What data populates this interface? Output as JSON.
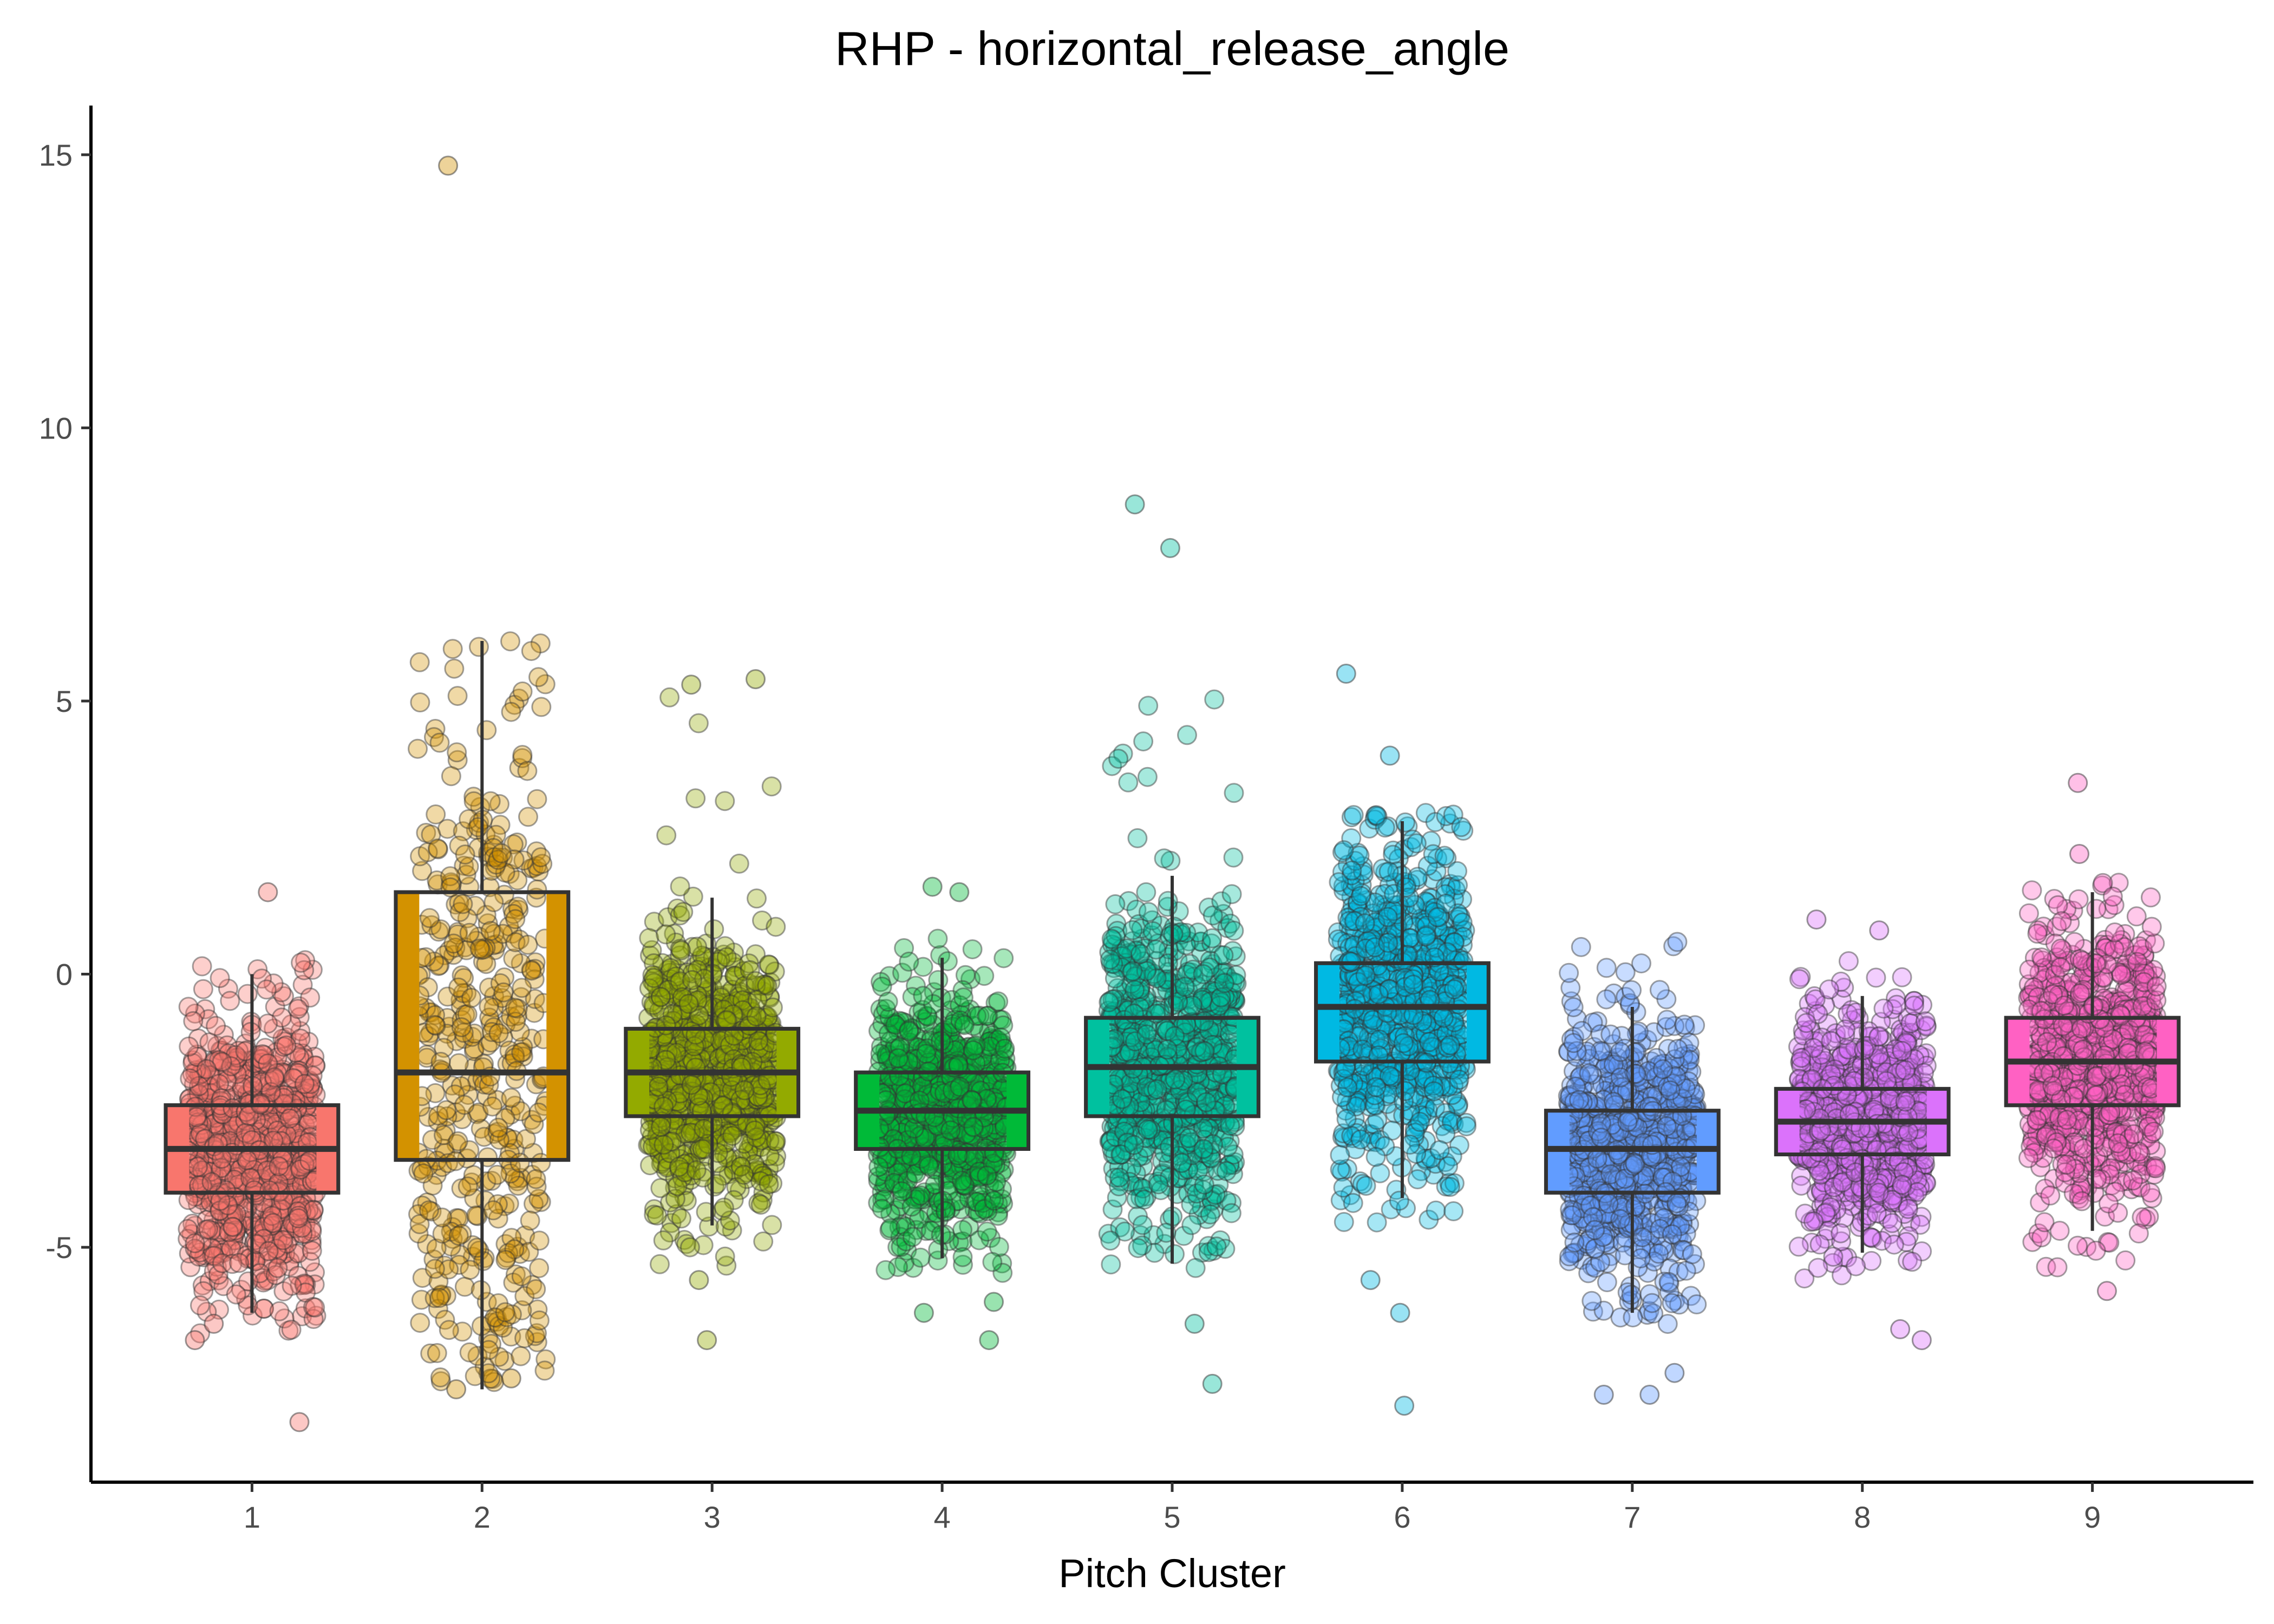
{
  "chart_data": {
    "type": "box",
    "title": "RHP - horizontal_release_angle",
    "xlabel": "Pitch Cluster",
    "ylabel": "",
    "ylim": [
      -9.3,
      15.9
    ],
    "y_ticks": [
      -5,
      0,
      5,
      10,
      15
    ],
    "y_tick_labels": [
      "-5",
      "0",
      "5",
      "10",
      "15"
    ],
    "categories": [
      "1",
      "2",
      "3",
      "4",
      "5",
      "6",
      "7",
      "8",
      "9"
    ],
    "grid": false,
    "legend": "none",
    "boxes": [
      {
        "category": "1",
        "color": "#F8766D",
        "q1": -4.0,
        "median": -3.2,
        "q3": -2.4,
        "whisker_low": -6.2,
        "whisker_high": 0.0,
        "jitter_low": -6.6,
        "jitter_high": 0.3,
        "n_points": 1400,
        "outliers": [
          1.5,
          -8.2,
          -6.7,
          -6.4
        ]
      },
      {
        "category": "2",
        "color": "#D39200",
        "q1": -3.4,
        "median": -1.8,
        "q3": 1.5,
        "whisker_low": -7.6,
        "whisker_high": 6.1,
        "jitter_low": -7.5,
        "jitter_high": 6.1,
        "n_points": 420,
        "outliers": [
          14.8,
          -7.6,
          -7.4
        ]
      },
      {
        "category": "3",
        "color": "#93AA00",
        "q1": -2.6,
        "median": -1.8,
        "q3": -1.0,
        "whisker_low": -4.6,
        "whisker_high": 1.4,
        "jitter_low": -5.4,
        "jitter_high": 5.4,
        "n_points": 2200,
        "outliers": [
          -6.7,
          -5.6,
          5.3,
          5.4
        ]
      },
      {
        "category": "4",
        "color": "#00BA38",
        "q1": -3.2,
        "median": -2.5,
        "q3": -1.8,
        "whisker_low": -5.2,
        "whisker_high": 0.3,
        "jitter_low": -5.5,
        "jitter_high": 0.7,
        "n_points": 1800,
        "outliers": [
          1.6,
          1.5,
          -6.0,
          -6.2,
          -6.7
        ]
      },
      {
        "category": "5",
        "color": "#00C19F",
        "q1": -2.6,
        "median": -1.7,
        "q3": -0.8,
        "whisker_low": -5.3,
        "whisker_high": 1.8,
        "jitter_low": -5.6,
        "jitter_high": 5.1,
        "n_points": 1900,
        "outliers": [
          8.6,
          7.8,
          -6.4,
          -7.5
        ]
      },
      {
        "category": "6",
        "color": "#00B9E3",
        "q1": -1.6,
        "median": -0.6,
        "q3": 0.2,
        "whisker_low": -4.1,
        "whisker_high": 2.8,
        "jitter_low": -4.6,
        "jitter_high": 3.0,
        "n_points": 1800,
        "outliers": [
          5.5,
          4.0,
          -5.6,
          -6.2,
          -7.9
        ]
      },
      {
        "category": "7",
        "color": "#619CFF",
        "q1": -4.0,
        "median": -3.2,
        "q3": -2.5,
        "whisker_low": -6.2,
        "whisker_high": -0.6,
        "jitter_low": -6.6,
        "jitter_high": 1.0,
        "n_points": 2000,
        "outliers": [
          -7.3,
          -7.7,
          -7.7
        ]
      },
      {
        "category": "8",
        "color": "#DB72FB",
        "q1": -3.3,
        "median": -2.7,
        "q3": -2.1,
        "whisker_low": -5.1,
        "whisker_high": -0.4,
        "jitter_low": -5.6,
        "jitter_high": 0.3,
        "n_points": 1700,
        "outliers": [
          1.0,
          0.8,
          -6.5,
          -6.7
        ]
      },
      {
        "category": "9",
        "color": "#FF61C3",
        "q1": -2.4,
        "median": -1.6,
        "q3": -0.8,
        "whisker_low": -4.7,
        "whisker_high": 1.5,
        "jitter_low": -5.4,
        "jitter_high": 1.7,
        "n_points": 2100,
        "outliers": [
          3.5,
          2.2,
          -5.8
        ]
      }
    ]
  }
}
